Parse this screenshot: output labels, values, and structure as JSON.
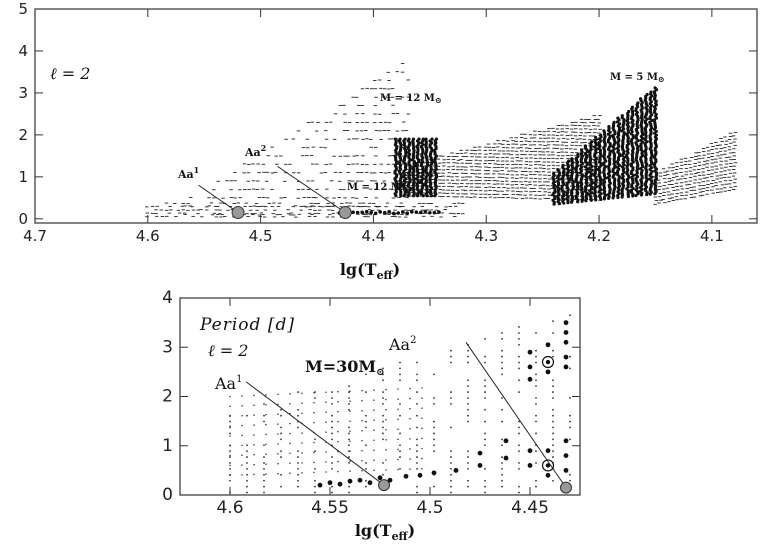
{
  "chart_data": [
    {
      "id": "top",
      "type": "scatter",
      "xlim": [
        4.7,
        4.06
      ],
      "ylim": [
        -0.1,
        5
      ],
      "xticks": [
        "4.7",
        "4.6",
        "4.5",
        "4.4",
        "4.3",
        "4.2",
        "4.1"
      ],
      "yticks": [
        "0",
        "1",
        "2",
        "3",
        "4",
        "5"
      ],
      "xlabel_main": "lg(T",
      "xlabel_sub": "eff",
      "xlabel_close": ")",
      "ylabel": "",
      "grid": false,
      "annotations": {
        "ell": "ℓ = 2",
        "m5": "M = 5 M",
        "m12_upper": "M = 12 M",
        "m12_lower": "M = 12 M",
        "sun_symbol": "⊙",
        "aa1": "Aa",
        "aa1_sup": "1",
        "aa2": "Aa",
        "aa2_sup": "2"
      },
      "highlighted_points": [
        {
          "name": "Aa1",
          "x": 4.52,
          "y": 0.15
        },
        {
          "name": "Aa2",
          "x": 4.425,
          "y": 0.15
        }
      ],
      "label_points": [
        {
          "name": "Aa1",
          "x": 4.555,
          "y": 0.8
        },
        {
          "name": "Aa2",
          "x": 4.485,
          "y": 1.25
        }
      ],
      "regions": [
        {
          "name": "12 Msun upper strip",
          "x_range": [
            4.37,
            4.2
          ],
          "y_low_start": 0.55,
          "y_low_end": 0.45,
          "y_high_start": 1.3,
          "y_high_end": 2.5,
          "style": "dash"
        },
        {
          "name": "12 Msun dense edge",
          "x_range": [
            4.38,
            4.345
          ],
          "y_range": [
            0.55,
            1.9
          ],
          "style": "dot"
        },
        {
          "name": "5 Msun strip",
          "x_range": [
            4.24,
            4.15
          ],
          "y_low_start": 0.35,
          "y_low_end": 0.6,
          "y_high_start": 1.1,
          "y_high_end": 3.15,
          "style": "dot"
        },
        {
          "name": "upper-right strip",
          "x_range": [
            4.15,
            4.08
          ],
          "y_low_start": 0.35,
          "y_low_end": 0.7,
          "y_high_start": 1.1,
          "y_high_end": 2.1,
          "style": "dash"
        },
        {
          "name": "30 Msun scatter",
          "x_range": [
            4.57,
            4.37
          ],
          "y_range": [
            0.1,
            3.8
          ],
          "style": "dash"
        },
        {
          "name": "low band",
          "x_range": [
            4.6,
            4.32
          ],
          "y_range": [
            0.05,
            0.45
          ],
          "style": "dash"
        }
      ]
    },
    {
      "id": "bottom",
      "type": "scatter",
      "xlim": [
        4.625,
        4.425
      ],
      "ylim": [
        0,
        4
      ],
      "xticks": [
        "4.6",
        "4.55",
        "4.5",
        "4.45"
      ],
      "yticks": [
        "0",
        "1",
        "2",
        "3",
        "4"
      ],
      "xlabel_main": "lg(T",
      "xlabel_sub": "eff",
      "xlabel_close": ")",
      "ylabel": "Period [d]",
      "grid": false,
      "annotations": {
        "ell": "ℓ = 2",
        "mass": "M=30M",
        "sun_symbol": "⊙",
        "aa1": "Aa",
        "aa1_sup": "1",
        "aa2": "Aa",
        "aa2_sup": "2"
      },
      "highlighted_points": [
        {
          "name": "Aa1",
          "x": 4.523,
          "y": 0.2
        },
        {
          "name": "Aa2",
          "x": 4.432,
          "y": 0.15
        }
      ],
      "circled_points": [
        {
          "x": 4.441,
          "y": 0.6
        },
        {
          "x": 4.441,
          "y": 2.7
        }
      ],
      "label_points": [
        {
          "name": "Aa1",
          "x": 4.592,
          "y": 2.3
        },
        {
          "name": "Aa2",
          "x": 4.482,
          "y": 3.1
        }
      ],
      "big_points": [
        {
          "x": 4.555,
          "y": 0.2
        },
        {
          "x": 4.55,
          "y": 0.25
        },
        {
          "x": 4.545,
          "y": 0.22
        },
        {
          "x": 4.54,
          "y": 0.28
        },
        {
          "x": 4.535,
          "y": 0.3
        },
        {
          "x": 4.53,
          "y": 0.25
        },
        {
          "x": 4.525,
          "y": 0.35
        },
        {
          "x": 4.52,
          "y": 0.3
        },
        {
          "x": 4.512,
          "y": 0.38
        },
        {
          "x": 4.505,
          "y": 0.4
        },
        {
          "x": 4.498,
          "y": 0.45
        },
        {
          "x": 4.487,
          "y": 0.5
        },
        {
          "x": 4.475,
          "y": 0.6
        },
        {
          "x": 4.475,
          "y": 0.85
        },
        {
          "x": 4.462,
          "y": 0.75
        },
        {
          "x": 4.462,
          "y": 1.1
        },
        {
          "x": 4.45,
          "y": 0.9
        },
        {
          "x": 4.45,
          "y": 0.6
        },
        {
          "x": 4.45,
          "y": 2.35
        },
        {
          "x": 4.45,
          "y": 2.6
        },
        {
          "x": 4.45,
          "y": 2.9
        },
        {
          "x": 4.441,
          "y": 0.4
        },
        {
          "x": 4.441,
          "y": 0.9
        },
        {
          "x": 4.441,
          "y": 2.5
        },
        {
          "x": 4.441,
          "y": 3.05
        },
        {
          "x": 4.432,
          "y": 0.5
        },
        {
          "x": 4.432,
          "y": 0.8
        },
        {
          "x": 4.432,
          "y": 1.1
        },
        {
          "x": 4.432,
          "y": 2.6
        },
        {
          "x": 4.432,
          "y": 2.8
        },
        {
          "x": 4.432,
          "y": 3.1
        },
        {
          "x": 4.432,
          "y": 3.3
        },
        {
          "x": 4.432,
          "y": 3.5
        }
      ]
    }
  ]
}
